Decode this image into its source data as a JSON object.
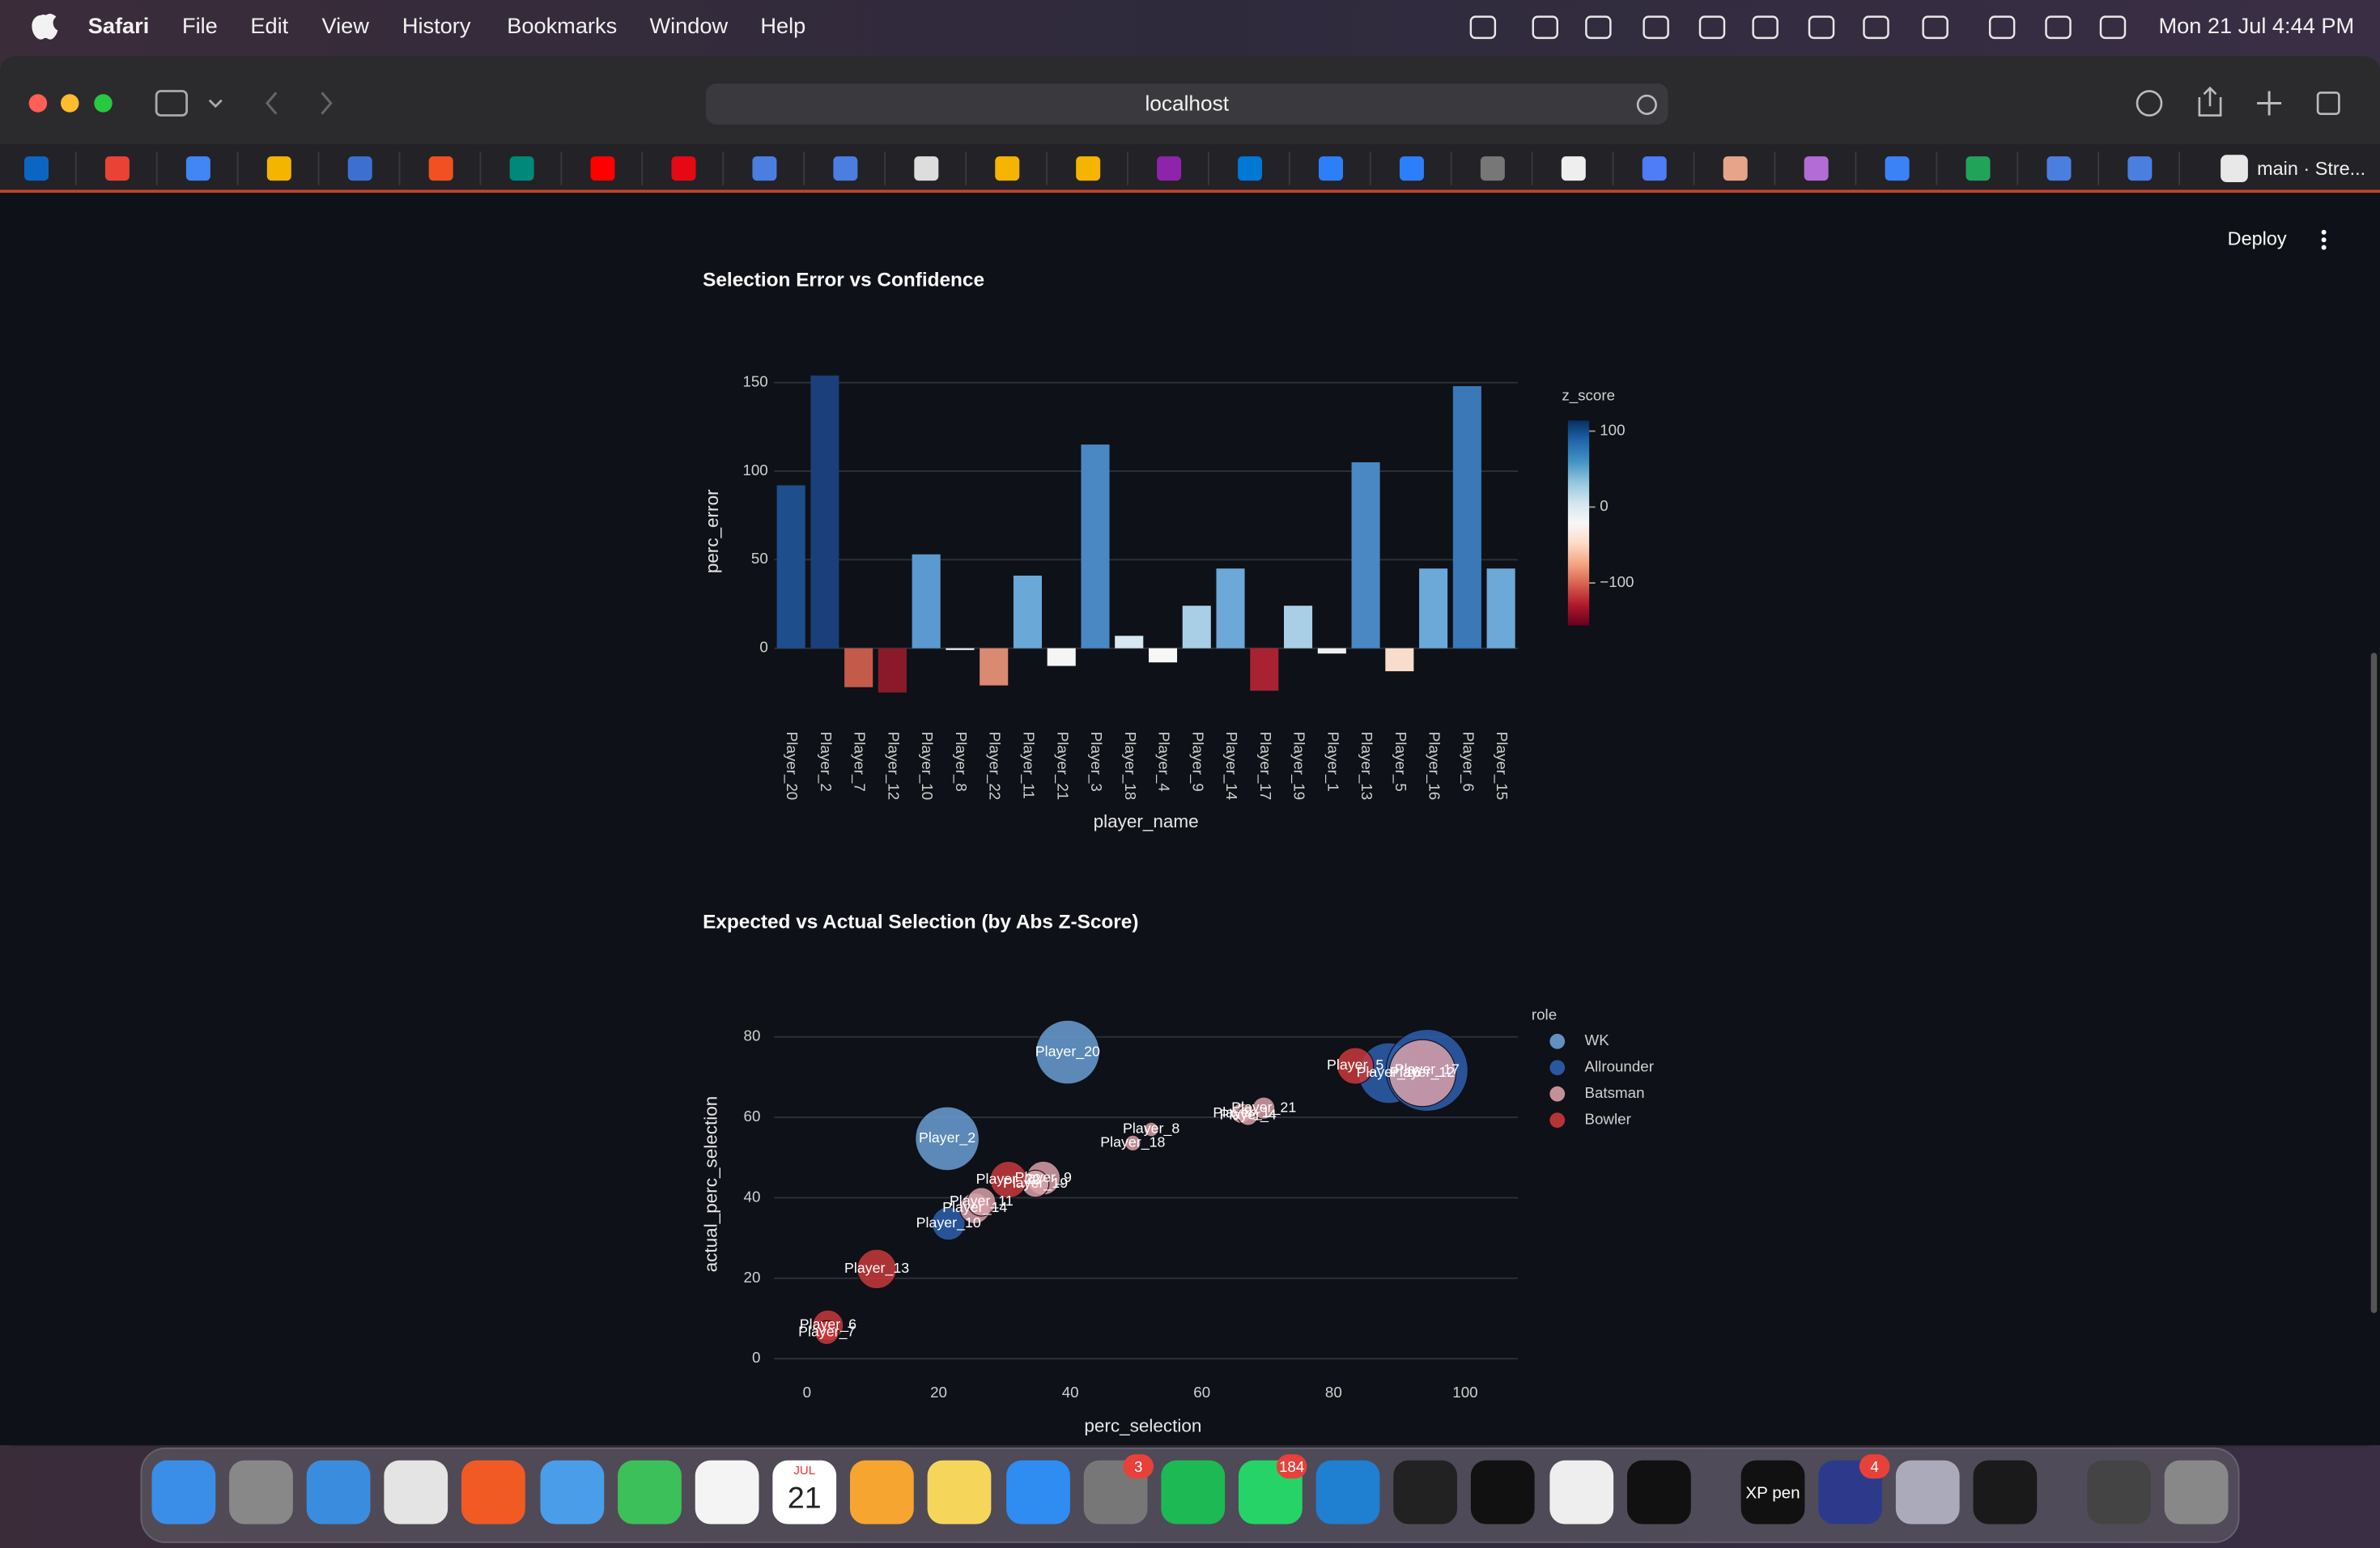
{
  "menu_bar": {
    "app": "Safari",
    "items": [
      "File",
      "Edit",
      "View",
      "History",
      "Bookmarks",
      "Window",
      "Help"
    ],
    "clock": "Mon 21 Jul  4:44 PM"
  },
  "toolbar": {
    "url": "localhost"
  },
  "bookmarks": {
    "last": "main · Stre..."
  },
  "app_header": {
    "deploy": "Deploy"
  },
  "chart_data": [
    {
      "type": "bar",
      "title": "Selection Error vs Confidence",
      "x_label": "player_name",
      "y_label": "perc_error",
      "categories": [
        "Player_20",
        "Player_2",
        "Player_7",
        "Player_12",
        "Player_10",
        "Player_8",
        "Player_22",
        "Player_11",
        "Player_21",
        "Player_3",
        "Player_18",
        "Player_4",
        "Player_9",
        "Player_14",
        "Player_17",
        "Player_19",
        "Player_1",
        "Player_13",
        "Player_5",
        "Player_16",
        "Player_6",
        "Player_15"
      ],
      "values": [
        92,
        154,
        -22,
        -25,
        53,
        -1,
        -21,
        41,
        -10,
        115,
        7,
        -8,
        24,
        45,
        -24,
        24,
        -3,
        105,
        -13,
        45,
        148,
        45
      ],
      "colors": [
        "#1f4e8c",
        "#1a3f7a",
        "#c45a4a",
        "#8a1a2a",
        "#5a9ad0",
        "#f0f0f0",
        "#d98a70",
        "#6aa8d8",
        "#f5f5f5",
        "#4a88c4",
        "#d8e8f2",
        "#f7f7f7",
        "#a8cfe6",
        "#6ca8d8",
        "#a82232",
        "#a8cfe6",
        "#f0f0f0",
        "#4a88c4",
        "#f8dccc",
        "#6ca8d8",
        "#3a78b8",
        "#6ca8d8"
      ],
      "ylim": [
        -30,
        165
      ],
      "yticks": [
        0,
        50,
        100,
        150
      ],
      "grid": true,
      "colorbar": {
        "title": "z_score",
        "zlim": [
          -156,
          114
        ],
        "ticks": [
          100,
          0,
          {
            "value": -100,
            "label": "−100"
          }
        ],
        "colors": [
          "#67001f",
          "#b2182b",
          "#d6604d",
          "#f4a582",
          "#fddbc7",
          "#f7f7f7",
          "#d1e5f0",
          "#92c5de",
          "#4393c3",
          "#2166ac",
          "#053061"
        ]
      }
    },
    {
      "type": "scatter",
      "title": "Expected vs Actual Selection (by Abs Z-Score)",
      "x_label": "perc_selection",
      "y_label": "actual_perc_selection",
      "legend_title": "role",
      "xlim": [
        -5,
        108
      ],
      "ylim": [
        -4,
        89
      ],
      "xticks": [
        0,
        20,
        40,
        60,
        80,
        100
      ],
      "yticks": [
        0,
        20,
        40,
        60,
        80
      ],
      "grid": true,
      "series": [
        {
          "name": "WK",
          "color": "#6a9fd4",
          "labels": [
            "Player_20",
            "Player_2"
          ],
          "x": [
            39.6,
            21.3
          ],
          "y": [
            76.2,
            54.7
          ],
          "size": [
            100,
            100
          ]
        },
        {
          "name": "Allrounder",
          "color": "#2e5fae",
          "labels": [
            "Player_10",
            "Player_16",
            "Player_17"
          ],
          "x": [
            21.5,
            88.4,
            94.2
          ],
          "y": [
            33.6,
            71,
            71.7
          ],
          "size": [
            27,
            90,
            165
          ]
        },
        {
          "name": "Batsman",
          "color": "#d8a0a8",
          "labels": [
            "Player_14",
            "Player_11",
            "Player_9",
            "Player_19",
            "Player_18",
            "Player_8",
            "Player_1",
            "Player_4",
            "Player_21",
            "Player_12"
          ],
          "x": [
            25.5,
            26.5,
            35.9,
            34.7,
            49.5,
            52.3,
            66,
            67,
            69.4,
            93.5
          ],
          "y": [
            37.4,
            39,
            44.9,
            43.5,
            53.6,
            57,
            61,
            60.5,
            62.3,
            71
          ],
          "size": [
            23,
            20,
            28,
            18,
            6,
            5,
            10,
            10,
            12,
            110
          ]
        },
        {
          "name": "Bowler",
          "color": "#c8393b",
          "labels": [
            "Player_13",
            "Player_6",
            "Player_7",
            "Player_22",
            "Player_5"
          ],
          "x": [
            10.6,
            3.2,
            3,
            30.6,
            83.3
          ],
          "y": [
            22.3,
            8.3,
            6.5,
            44.5,
            72.8
          ],
          "size": [
            38,
            23,
            14,
            33,
            33
          ]
        }
      ]
    }
  ],
  "dock": {
    "calendar_month": "JUL",
    "calendar_day": "21",
    "xp_pen": "XP pen",
    "badges": [
      "3",
      "184",
      "4"
    ]
  }
}
